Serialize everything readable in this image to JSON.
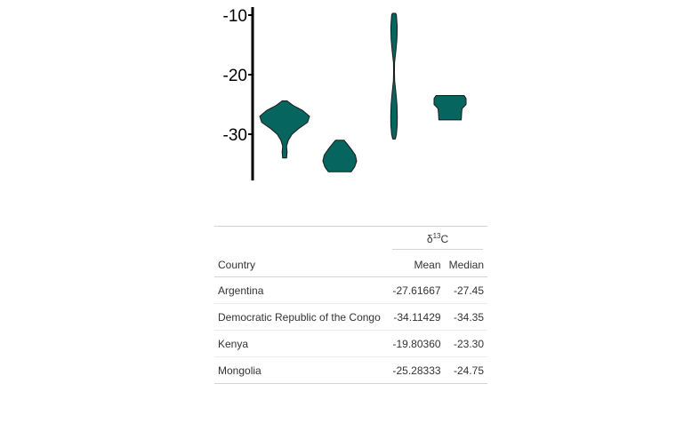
{
  "chart_data": {
    "type": "violin",
    "y_ticks": [
      -10,
      -20,
      -30
    ],
    "ylim": [
      -38,
      -8
    ],
    "fill_color": "#07655f",
    "outline_color": "#1a1a1a",
    "axis_color": "#000000",
    "groups": [
      {
        "name": "Argentina",
        "profile": [
          [
            -34.0,
            0.08
          ],
          [
            -33.0,
            0.1
          ],
          [
            -32.0,
            0.08
          ],
          [
            -31.0,
            0.15
          ],
          [
            -30.0,
            0.3
          ],
          [
            -29.0,
            0.58
          ],
          [
            -28.0,
            0.92
          ],
          [
            -27.0,
            1.0
          ],
          [
            -26.0,
            0.72
          ],
          [
            -25.2,
            0.35
          ],
          [
            -24.4,
            0.1
          ]
        ]
      },
      {
        "name": "Democratic Republic of the Congo",
        "profile": [
          [
            -36.3,
            0.68
          ],
          [
            -35.5,
            0.88
          ],
          [
            -34.5,
            1.0
          ],
          [
            -33.5,
            0.92
          ],
          [
            -32.5,
            0.68
          ],
          [
            -31.5,
            0.4
          ],
          [
            -31.0,
            0.25
          ]
        ]
      },
      {
        "name": "Kenya",
        "profile": [
          [
            -30.8,
            0.25
          ],
          [
            -30.0,
            0.45
          ],
          [
            -28.5,
            0.6
          ],
          [
            -27.0,
            0.62
          ],
          [
            -25.0,
            0.55
          ],
          [
            -23.0,
            0.35
          ],
          [
            -21.0,
            0.12
          ],
          [
            -19.5,
            0.08
          ],
          [
            -18.0,
            0.1
          ],
          [
            -16.0,
            0.35
          ],
          [
            -14.0,
            0.55
          ],
          [
            -12.0,
            0.6
          ],
          [
            -10.0,
            0.45
          ],
          [
            -9.7,
            0.3
          ]
        ]
      },
      {
        "name": "Mongolia",
        "profile": [
          [
            -27.6,
            0.7
          ],
          [
            -26.5,
            0.72
          ],
          [
            -25.7,
            0.75
          ],
          [
            -25.0,
            1.0
          ],
          [
            -24.0,
            1.0
          ],
          [
            -23.5,
            0.88
          ]
        ]
      }
    ]
  },
  "table": {
    "spanner": {
      "delta": "δ",
      "sup": "13",
      "element": "C"
    },
    "columns": {
      "country": "Country",
      "mean": "Mean",
      "median": "Median"
    },
    "rows": [
      {
        "country": "Argentina",
        "mean": "-27.61667",
        "median": "-27.45"
      },
      {
        "country": "Democratic Republic of the Congo",
        "mean": "-34.11429",
        "median": "-34.35"
      },
      {
        "country": "Kenya",
        "mean": "-19.80360",
        "median": "-23.30"
      },
      {
        "country": "Mongolia",
        "mean": "-25.28333",
        "median": "-24.75"
      }
    ]
  }
}
